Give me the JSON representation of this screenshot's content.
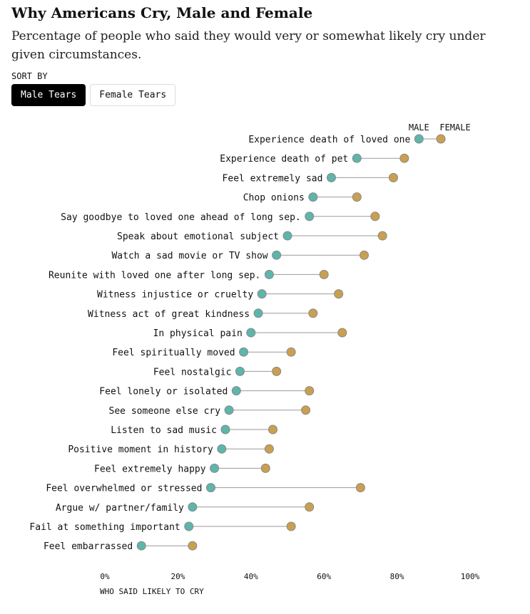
{
  "title": "Why Americans Cry, Male and Female",
  "subtitle": "Percentage of people who said they would very or somewhat likely cry under given circumstances.",
  "sort": {
    "label": "SORT BY",
    "options": [
      "Male Tears",
      "Female Tears"
    ],
    "selected": "Male Tears"
  },
  "colors": {
    "male": "#5db5ab",
    "female": "#c9a04f",
    "line": "#999999"
  },
  "chart_data": {
    "type": "dot-range",
    "xlabel": "WHO SAID LIKELY TO CRY",
    "xlim": [
      0,
      100
    ],
    "xticks": [
      "0%",
      "20%",
      "40%",
      "60%",
      "80%",
      "100%"
    ],
    "legend": [
      "MALE",
      "FEMALE"
    ],
    "categories": [
      "Experience death of loved one",
      "Experience death of pet",
      "Feel extremely sad",
      "Chop onions",
      "Say goodbye to loved one ahead of long sep.",
      "Speak about emotional subject",
      "Watch a sad movie or TV show",
      "Reunite with loved one after long sep.",
      "Witness injustice or cruelty",
      "Witness act of great kindness",
      "In physical pain",
      "Feel spiritually moved",
      "Feel nostalgic",
      "Feel lonely or isolated",
      "See someone else cry",
      "Listen to sad music",
      "Positive moment in history",
      "Feel extremely happy",
      "Feel overwhelmed or stressed",
      "Argue w/ partner/family",
      "Fail at something important",
      "Feel embarrassed"
    ],
    "series": [
      {
        "name": "Male",
        "values": [
          86,
          69,
          62,
          57,
          56,
          50,
          47,
          45,
          43,
          42,
          40,
          38,
          37,
          36,
          34,
          33,
          32,
          30,
          29,
          24,
          23,
          10
        ]
      },
      {
        "name": "Female",
        "values": [
          92,
          82,
          79,
          69,
          74,
          76,
          71,
          60,
          64,
          57,
          65,
          51,
          47,
          56,
          55,
          46,
          45,
          44,
          70,
          56,
          51,
          24
        ]
      }
    ]
  }
}
